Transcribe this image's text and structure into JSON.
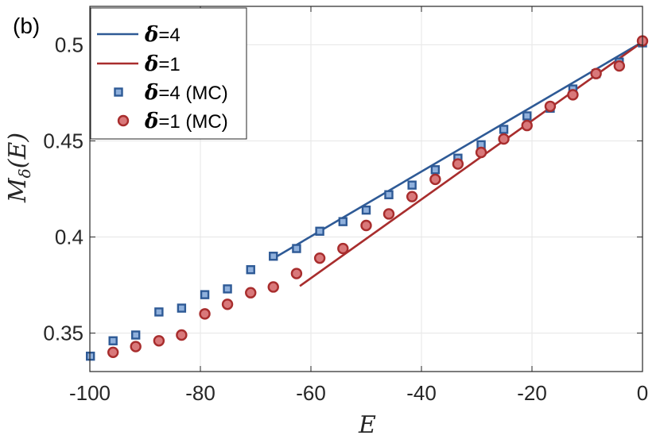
{
  "panel_label": "(b)",
  "chart_data": {
    "type": "line",
    "title": "",
    "xlabel": "E",
    "ylabel": {
      "main": "M",
      "sub": "δ",
      "arg": "(E)"
    },
    "xlim": [
      -100,
      0
    ],
    "ylim": [
      0.33,
      0.52
    ],
    "xticks": [
      -100,
      -80,
      -60,
      -40,
      -20,
      0
    ],
    "xtick_labels": [
      "-100",
      "-80",
      "-60",
      "-40",
      "-20",
      "0"
    ],
    "yticks": [
      0.35,
      0.4,
      0.45,
      0.5
    ],
    "ytick_labels": [
      "0.35",
      "0.4",
      "0.45",
      "0.5"
    ],
    "grid": true,
    "legend_position": "top-left",
    "series": [
      {
        "name": "δ=4",
        "legend_symbol": "δ",
        "legend_rest": "=4",
        "kind": "line",
        "color": "#2e5a96",
        "x": [
          -67,
          0
        ],
        "y": [
          0.3885,
          0.5015
        ]
      },
      {
        "name": "δ=1",
        "legend_symbol": "δ",
        "legend_rest": "=1",
        "kind": "line",
        "color": "#a82d2d",
        "x": [
          -62,
          0
        ],
        "y": [
          0.3745,
          0.5015
        ]
      },
      {
        "name": "δ=4 (MC)",
        "legend_symbol": "δ",
        "legend_rest": "=4 (MC)",
        "kind": "scatter",
        "marker": "square",
        "color": "#2e5a96",
        "fill": "#8fb0dc",
        "x": [
          -99.9,
          -95.8,
          -91.7,
          -87.5,
          -83.4,
          -79.2,
          -75.1,
          -70.9,
          -66.8,
          -62.6,
          -58.4,
          -54.2,
          -50.0,
          -45.9,
          -41.7,
          -37.5,
          -33.4,
          -29.2,
          -25.1,
          -20.9,
          -16.7,
          -12.6,
          -8.4,
          -4.2,
          0.0
        ],
        "y": [
          0.338,
          0.346,
          0.349,
          0.361,
          0.363,
          0.37,
          0.373,
          0.383,
          0.39,
          0.394,
          0.403,
          0.408,
          0.414,
          0.422,
          0.427,
          0.435,
          0.441,
          0.448,
          0.456,
          0.463,
          0.467,
          0.477,
          0.485,
          0.491,
          0.501
        ]
      },
      {
        "name": "δ=1 (MC)",
        "legend_symbol": "δ",
        "legend_rest": "=1 (MC)",
        "kind": "scatter",
        "marker": "circle",
        "color": "#a82d2d",
        "fill": "#d9787a",
        "x": [
          -95.8,
          -91.7,
          -87.5,
          -83.4,
          -79.2,
          -75.1,
          -70.9,
          -66.8,
          -62.6,
          -58.4,
          -54.2,
          -50.0,
          -45.9,
          -41.7,
          -37.5,
          -33.4,
          -29.2,
          -25.1,
          -20.9,
          -16.7,
          -12.6,
          -8.4,
          -4.2,
          0.0
        ],
        "y": [
          0.34,
          0.343,
          0.346,
          0.349,
          0.36,
          0.365,
          0.371,
          0.374,
          0.381,
          0.389,
          0.394,
          0.406,
          0.412,
          0.421,
          0.43,
          0.438,
          0.444,
          0.451,
          0.458,
          0.468,
          0.474,
          0.485,
          0.489,
          0.502
        ]
      }
    ]
  }
}
